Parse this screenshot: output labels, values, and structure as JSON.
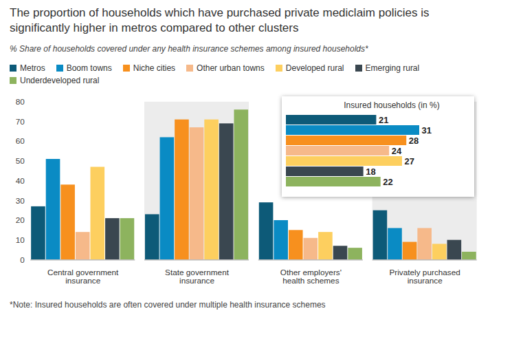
{
  "chart_data": [
    {
      "type": "bar",
      "title": "The proportion of households which have purchased private mediclaim policies is significantly higher in metros compared to other clusters",
      "subtitle": "% Share of households covered under any health insurance schemes among insured households*",
      "categories": [
        "Central government insurance",
        "State government insurance",
        "Other employers' health schemes",
        "Privately purchased insurance"
      ],
      "series": [
        {
          "name": "Metros",
          "color": "#0d5a78",
          "values": [
            27,
            23,
            29,
            25
          ]
        },
        {
          "name": "Boom towns",
          "color": "#0a8bc4",
          "values": [
            51,
            62,
            20,
            16
          ]
        },
        {
          "name": "Niche cities",
          "color": "#f7901e",
          "values": [
            38,
            71,
            15,
            9
          ]
        },
        {
          "name": "Other urban towns",
          "color": "#f6b98a",
          "values": [
            14,
            67,
            11,
            16
          ]
        },
        {
          "name": "Developed rural",
          "color": "#fdcf5f",
          "values": [
            47,
            71,
            14,
            8
          ]
        },
        {
          "name": "Emerging rural",
          "color": "#3a4750",
          "values": [
            21,
            69,
            7,
            10
          ]
        },
        {
          "name": "Underdeveloped rural",
          "color": "#8db35e",
          "values": [
            21,
            76,
            6,
            4
          ]
        }
      ],
      "ylim": [
        0,
        80
      ],
      "yticks": [
        0,
        10,
        20,
        30,
        40,
        50,
        60,
        70,
        80
      ],
      "grid": false,
      "legend": "top",
      "annotations": [
        "*Note: Insured households are often covered under multiple health insurance schemes"
      ]
    },
    {
      "type": "bar",
      "title": "Insured households (in %)",
      "orientation": "horizontal",
      "categories": [
        null,
        null,
        null,
        null,
        null,
        null,
        null
      ],
      "values": [
        21,
        31,
        28,
        24,
        27,
        18,
        22
      ],
      "colors": [
        "#0d5a78",
        "#0a8bc4",
        "#f7901e",
        "#f6b98a",
        "#fdcf5f",
        "#3a4750",
        "#8db35e"
      ],
      "xlim": [
        0,
        31
      ],
      "data_labels": true,
      "tick_labels": false
    }
  ]
}
